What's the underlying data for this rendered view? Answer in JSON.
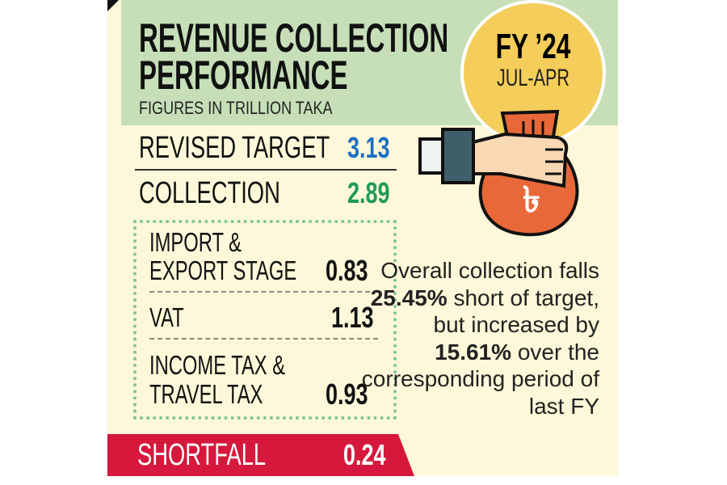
{
  "title_line1": "REVENUE COLLECTION",
  "title_line2": "PERFORMANCE",
  "subtitle": "FIGURES IN TRILLION TAKA",
  "badge": {
    "fy": "FY ’24",
    "period": "JUL-APR"
  },
  "rows": {
    "revised_target": {
      "label": "REVISED TARGET",
      "value": "3.13"
    },
    "collection": {
      "label": "COLLECTION",
      "value": "2.89"
    }
  },
  "breakdown": [
    {
      "label_line1": "IMPORT &",
      "label_line2": "EXPORT STAGE",
      "value": "0.83"
    },
    {
      "label_line1": "VAT",
      "value": "1.13"
    },
    {
      "label_line1": "INCOME TAX &",
      "label_line2": "TRAVEL TAX",
      "value": "0.93"
    }
  ],
  "shortfall": {
    "label": "SHORTFALL",
    "value": "0.24"
  },
  "note": {
    "p1": "Overall collection falls",
    "b1": "25.45%",
    "p2": "short of target, but increased by",
    "b2": "15.61%",
    "p3": "over the corresponding period of last FY"
  },
  "colors": {
    "header": "#c6dfb8",
    "panel": "#fdf8d9",
    "target": "#1f6fc4",
    "collection": "#1e9a5a",
    "shortfall": "#d5183b",
    "badge": "#f5cd5a",
    "bag": "#e8683a"
  }
}
